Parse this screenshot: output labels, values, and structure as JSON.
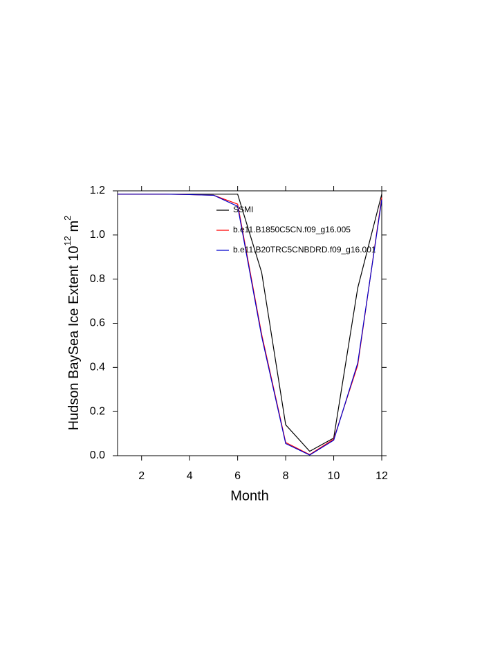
{
  "chart_data": {
    "type": "line",
    "xlabel": "Month",
    "ylabel_parts": [
      "Hudson BaySea Ice Extent 10",
      "12",
      " m",
      "2"
    ],
    "x": [
      1,
      2,
      3,
      4,
      5,
      6,
      7,
      8,
      9,
      10,
      11,
      12
    ],
    "series": [
      {
        "name": "SSMI",
        "color": "#000000",
        "values": [
          1.185,
          1.185,
          1.185,
          1.185,
          1.185,
          1.185,
          0.83,
          0.14,
          0.02,
          0.08,
          0.76,
          1.185
        ]
      },
      {
        "name": "b.e11.B1850C5CN.f09_g16.005",
        "color": "#ff0000",
        "values": [
          1.185,
          1.185,
          1.185,
          1.183,
          1.18,
          1.14,
          0.55,
          0.06,
          0.005,
          0.075,
          0.41,
          1.17
        ]
      },
      {
        "name": "b.e11.B20TRC5CNBDRD.f09_g16.001",
        "color": "#0000cc",
        "values": [
          1.185,
          1.185,
          1.185,
          1.183,
          1.18,
          1.13,
          0.54,
          0.055,
          0.003,
          0.07,
          0.42,
          1.16
        ]
      }
    ],
    "xlim": [
      1,
      12
    ],
    "xticks": [
      2,
      4,
      6,
      8,
      10,
      12
    ],
    "ylim": [
      0,
      1.2
    ],
    "yticks": [
      {
        "value": 0,
        "label": "0.0"
      },
      0.2,
      0.4,
      0.6,
      0.8,
      {
        "value": 1,
        "label": "1.0"
      },
      1.2
    ],
    "grid": false,
    "legend": "top"
  }
}
